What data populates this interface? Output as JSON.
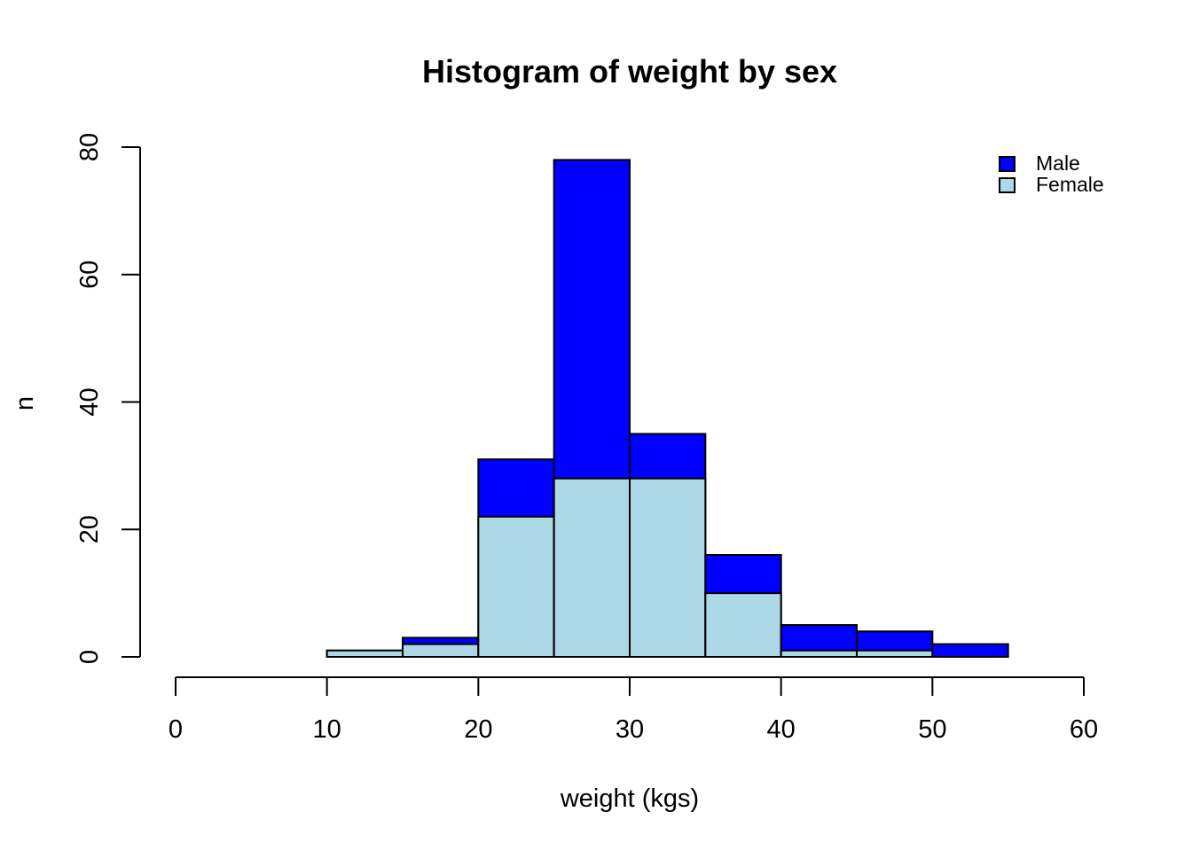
{
  "chart_data": {
    "type": "bar",
    "stacked": true,
    "title": "Histogram of weight by sex",
    "xlabel": "weight (kgs)",
    "ylabel": "n",
    "xlim": [
      0,
      60
    ],
    "ylim": [
      0,
      80
    ],
    "xticks": [
      0,
      10,
      20,
      30,
      40,
      50,
      60
    ],
    "yticks": [
      0,
      20,
      40,
      60,
      80
    ],
    "bin_width": 5,
    "bins": [
      10,
      15,
      20,
      25,
      30,
      35,
      40,
      45,
      50
    ],
    "series": [
      {
        "name": "Female",
        "color": "#add8e6",
        "values": [
          1,
          2,
          22,
          28,
          28,
          10,
          1,
          1,
          0
        ]
      },
      {
        "name": "Male",
        "color": "#0000ff",
        "values": [
          0,
          1,
          9,
          50,
          7,
          6,
          4,
          3,
          2
        ]
      }
    ],
    "legend": {
      "position": "top-right",
      "entries": [
        {
          "label": "Male",
          "color": "#0000ff"
        },
        {
          "label": "Female",
          "color": "#add8e6"
        }
      ]
    },
    "grid": false
  }
}
